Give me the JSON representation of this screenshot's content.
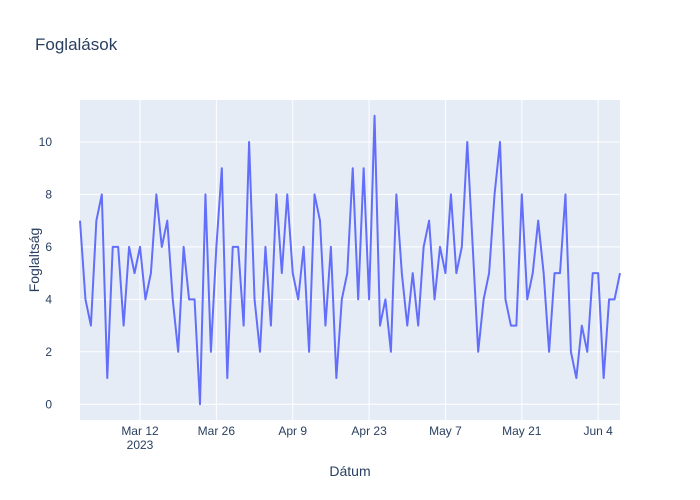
{
  "chart_data": {
    "type": "line",
    "title": "Foglalások",
    "xlabel": "Dátum",
    "ylabel": "Foglaltság",
    "start_date": "2023-03-01",
    "x_ticks": [
      {
        "date": "2023-03-12",
        "label": "Mar 12",
        "sublabel": "2023"
      },
      {
        "date": "2023-03-26",
        "label": "Mar 26"
      },
      {
        "date": "2023-04-09",
        "label": "Apr 9"
      },
      {
        "date": "2023-04-23",
        "label": "Apr 23"
      },
      {
        "date": "2023-05-07",
        "label": "May 7"
      },
      {
        "date": "2023-05-21",
        "label": "May 21"
      },
      {
        "date": "2023-06-04",
        "label": "Jun 4"
      }
    ],
    "y_ticks": [
      0,
      2,
      4,
      6,
      8,
      10
    ],
    "xlim": [
      "2023-03-01",
      "2023-06-08"
    ],
    "ylim": [
      -0.6,
      11.6
    ],
    "grid": true,
    "colors": {
      "line": "#636efa",
      "plot_bg": "#e5ecf6",
      "grid": "#ffffff",
      "text": "#2a3f5f"
    },
    "series": [
      {
        "name": "",
        "values": [
          7,
          4,
          3,
          7,
          8,
          1,
          6,
          6,
          3,
          6,
          5,
          6,
          4,
          5,
          8,
          6,
          7,
          4,
          2,
          6,
          4,
          4,
          0,
          8,
          2,
          6,
          9,
          1,
          6,
          6,
          3,
          10,
          4,
          2,
          6,
          3,
          8,
          5,
          8,
          5,
          4,
          6,
          2,
          8,
          7,
          3,
          6,
          1,
          4,
          5,
          9,
          4,
          9,
          4,
          11,
          3,
          4,
          2,
          8,
          5,
          3,
          5,
          3,
          6,
          7,
          4,
          6,
          5,
          8,
          5,
          6,
          10,
          6,
          2,
          4,
          5,
          8,
          10,
          4,
          3,
          3,
          8,
          4,
          5,
          7,
          5,
          2,
          5,
          5,
          8,
          2,
          1,
          3,
          2,
          5,
          5,
          1,
          4,
          4,
          5
        ]
      }
    ]
  }
}
